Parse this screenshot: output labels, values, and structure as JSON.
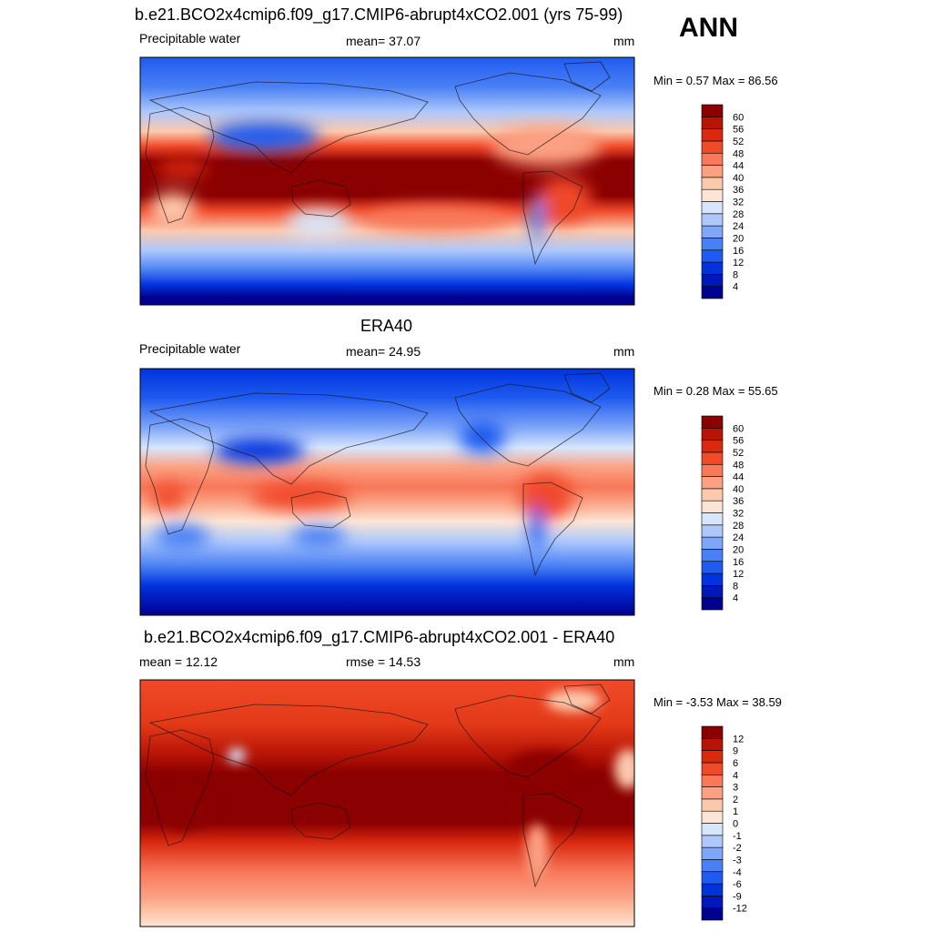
{
  "season": "ANN",
  "panels": [
    {
      "title": "b.e21.BCO2x4cmip6.f09_g17.CMIP6-abrupt4xCO2.001 (yrs 75-99)",
      "left_label": "Precipitable water",
      "center_label": "mean=  37.07",
      "right_label": "mm",
      "minmax": "Min =   0.57 Max =  86.56",
      "colorbar_ticks": [
        "60",
        "56",
        "52",
        "48",
        "44",
        "40",
        "36",
        "32",
        "28",
        "24",
        "20",
        "16",
        "12",
        "8",
        "4"
      ]
    },
    {
      "title": "ERA40",
      "left_label": "Precipitable water",
      "center_label": "mean=  24.95",
      "right_label": "mm",
      "minmax": "Min =   0.28 Max =  55.65",
      "colorbar_ticks": [
        "60",
        "56",
        "52",
        "48",
        "44",
        "40",
        "36",
        "32",
        "28",
        "24",
        "20",
        "16",
        "12",
        "8",
        "4"
      ]
    },
    {
      "title": "b.e21.BCO2x4cmip6.f09_g17.CMIP6-abrupt4xCO2.001 - ERA40",
      "left_label": "mean =  12.12",
      "center_label": "rmse =  14.53",
      "right_label": "mm",
      "minmax": "Min =  -3.53 Max =  38.59",
      "colorbar_ticks": [
        "12",
        "9",
        "6",
        "4",
        "3",
        "2",
        "1",
        "0",
        "-1",
        "-2",
        "-3",
        "-4",
        "-6",
        "-9",
        "-12"
      ]
    }
  ],
  "chart_data": [
    {
      "type": "heatmap",
      "title": "b.e21.BCO2x4cmip6.f09_g17.CMIP6-abrupt4xCO2.001 (yrs 75-99)",
      "variable": "Precipitable water",
      "units": "mm",
      "mean": 37.07,
      "min": 0.57,
      "max": 86.56,
      "levels": [
        4,
        8,
        12,
        16,
        20,
        24,
        28,
        32,
        36,
        40,
        44,
        48,
        52,
        56,
        60
      ],
      "colors": [
        "#00008f",
        "#0018b8",
        "#0033dd",
        "#1f5bf0",
        "#4a80f5",
        "#7fa6f8",
        "#aec8fb",
        "#d7e6fd",
        "#fde5d5",
        "#fcc9ad",
        "#fba183",
        "#f8785a",
        "#f04a2a",
        "#d92a10",
        "#b81406",
        "#8b0000"
      ]
    },
    {
      "type": "heatmap",
      "title": "ERA40",
      "variable": "Precipitable water",
      "units": "mm",
      "mean": 24.95,
      "min": 0.28,
      "max": 55.65,
      "levels": [
        4,
        8,
        12,
        16,
        20,
        24,
        28,
        32,
        36,
        40,
        44,
        48,
        52,
        56,
        60
      ],
      "colors": [
        "#00008f",
        "#0018b8",
        "#0033dd",
        "#1f5bf0",
        "#4a80f5",
        "#7fa6f8",
        "#aec8fb",
        "#d7e6fd",
        "#fde5d5",
        "#fcc9ad",
        "#fba183",
        "#f8785a",
        "#f04a2a",
        "#d92a10",
        "#b81406",
        "#8b0000"
      ]
    },
    {
      "type": "heatmap",
      "title": "b.e21.BCO2x4cmip6.f09_g17.CMIP6-abrupt4xCO2.001 - ERA40",
      "units": "mm",
      "mean": 12.12,
      "rmse": 14.53,
      "min": -3.53,
      "max": 38.59,
      "levels": [
        -12,
        -9,
        -6,
        -4,
        -3,
        -2,
        -1,
        0,
        1,
        2,
        3,
        4,
        6,
        9,
        12
      ],
      "colors": [
        "#00008f",
        "#0018b8",
        "#0033dd",
        "#1f5bf0",
        "#4a80f5",
        "#7fa6f8",
        "#aec8fb",
        "#d7e6fd",
        "#fde5d5",
        "#fcc9ad",
        "#fba183",
        "#f8785a",
        "#f04a2a",
        "#d92a10",
        "#b81406",
        "#8b0000"
      ]
    }
  ]
}
